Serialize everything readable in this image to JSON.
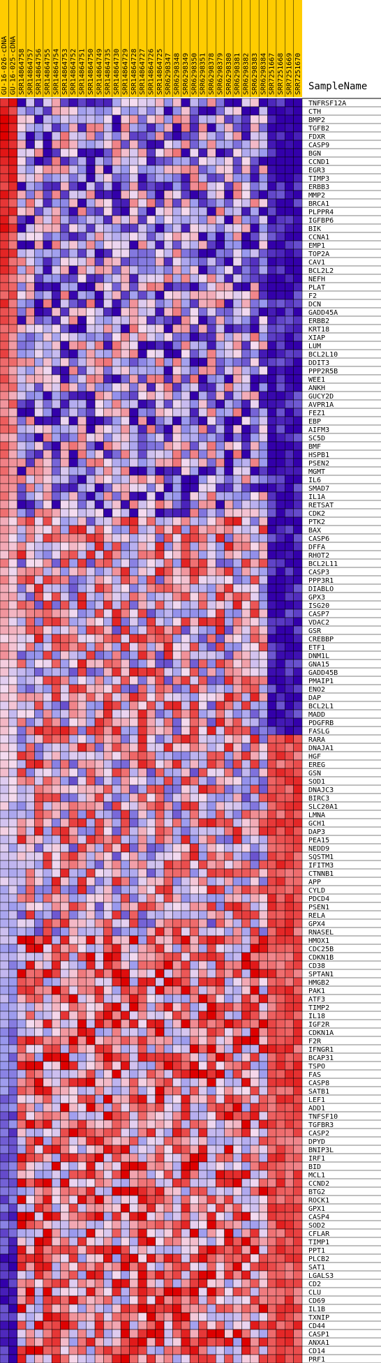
{
  "chart_data": {
    "type": "heatmap",
    "row_header": "SampleName",
    "colors": {
      "column_header_background": "#ffcc00",
      "low": "#3300aa",
      "mid_low": "#9999ee",
      "neutral": "#f5dcf0",
      "mid_high": "#ee6666",
      "high": "#dd0000",
      "grid": "#000000"
    },
    "value_range": [
      -3,
      3
    ],
    "columns": [
      "GU-16-026-cDNA",
      "GU-16-025-cDNA",
      "SRR14864758",
      "SRR14864757",
      "SRR14864756",
      "SRR14864755",
      "SRR14864754",
      "SRR14864753",
      "SRR14864752",
      "SRR14864751",
      "SRR14864750",
      "SRR14864749",
      "SRR14864735",
      "SRR14864730",
      "SRR14864729",
      "SRR14864728",
      "SRR14864727",
      "SRR14864726",
      "SRR14864725",
      "SRR6298347",
      "SRR6298348",
      "SRR6298349",
      "SRR6298350",
      "SRR6298351",
      "SRR6298378",
      "SRR6298379",
      "SRR6298380",
      "SRR6298381",
      "SRR6298382",
      "SRR6298383",
      "SRR6298384",
      "SRR7251667",
      "SRR7251668",
      "SRR7251669",
      "SRR7251670"
    ],
    "rows": [
      "TNFRSF12A",
      "CTH",
      "BMP2",
      "TGFB2",
      "FDXR",
      "CASP9",
      "BGN",
      "CCND1",
      "EGR3",
      "TIMP3",
      "ERBB3",
      "MMP2",
      "BRCA1",
      "PLPPR4",
      "IGFBP6",
      "BIK",
      "CCNA1",
      "EMP1",
      "TOP2A",
      "CAV1",
      "BCL2L2",
      "NEFH",
      "PLAT",
      "F2",
      "DCN",
      "GADD45A",
      "ERBB2",
      "KRT18",
      "XIAP",
      "LUM",
      "BCL2L10",
      "DDIT3",
      "PPP2R5B",
      "WEE1",
      "ANKH",
      "GUCY2D",
      "AVPR1A",
      "FEZ1",
      "EBP",
      "AIFM3",
      "SC5D",
      "BMF",
      "HSPB1",
      "PSEN2",
      "MGMT",
      "IL6",
      "SMAD7",
      "IL1A",
      "RETSAT",
      "CDK2",
      "PTK2",
      "BAX",
      "CASP6",
      "DFFA",
      "RHOT2",
      "BCL2L11",
      "CASP3",
      "PPP3R1",
      "DIABLO",
      "GPX3",
      "ISG20",
      "CASP7",
      "VDAC2",
      "GSR",
      "CREBBP",
      "ETF1",
      "DNM1L",
      "GNA15",
      "GADD45B",
      "PMAIP1",
      "ENO2",
      "DAP",
      "BCL2L1",
      "MADD",
      "PDGFRB",
      "FASLG",
      "RARA",
      "DNAJA1",
      "HGF",
      "EREG",
      "GSN",
      "SOD1",
      "DNAJC3",
      "BIRC3",
      "SLC20A1",
      "LMNA",
      "GCH1",
      "DAP3",
      "PEA15",
      "NEDD9",
      "SQSTM1",
      "IFITM3",
      "CTNNB1",
      "APP",
      "CYLD",
      "PDCD4",
      "PSEN1",
      "RELA",
      "GPX4",
      "RNASEL",
      "HMOX1",
      "CDC25B",
      "CDKN1B",
      "CD38",
      "SPTAN1",
      "HMGB2",
      "PAK1",
      "ATF3",
      "TIMP2",
      "IL18",
      "IGF2R",
      "CDKN1A",
      "F2R",
      "IFNGR1",
      "BCAP31",
      "TSPO",
      "FAS",
      "CASP8",
      "SATB1",
      "LEF1",
      "ADD1",
      "TNFSF10",
      "TGFBR3",
      "CASP2",
      "DPYD",
      "BNIP3L",
      "IRF1",
      "BID",
      "MCL1",
      "CCND2",
      "BTG2",
      "ROCK1",
      "GPX1",
      "CASP4",
      "SOD2",
      "CFLAR",
      "TIMP1",
      "PPT1",
      "PLCB2",
      "SAT1",
      "LGALS3",
      "CD2",
      "CLU",
      "CD69",
      "IL1B",
      "TXNIP",
      "CD44",
      "CASP1",
      "ANXA1",
      "CD14",
      "PRF1"
    ]
  }
}
